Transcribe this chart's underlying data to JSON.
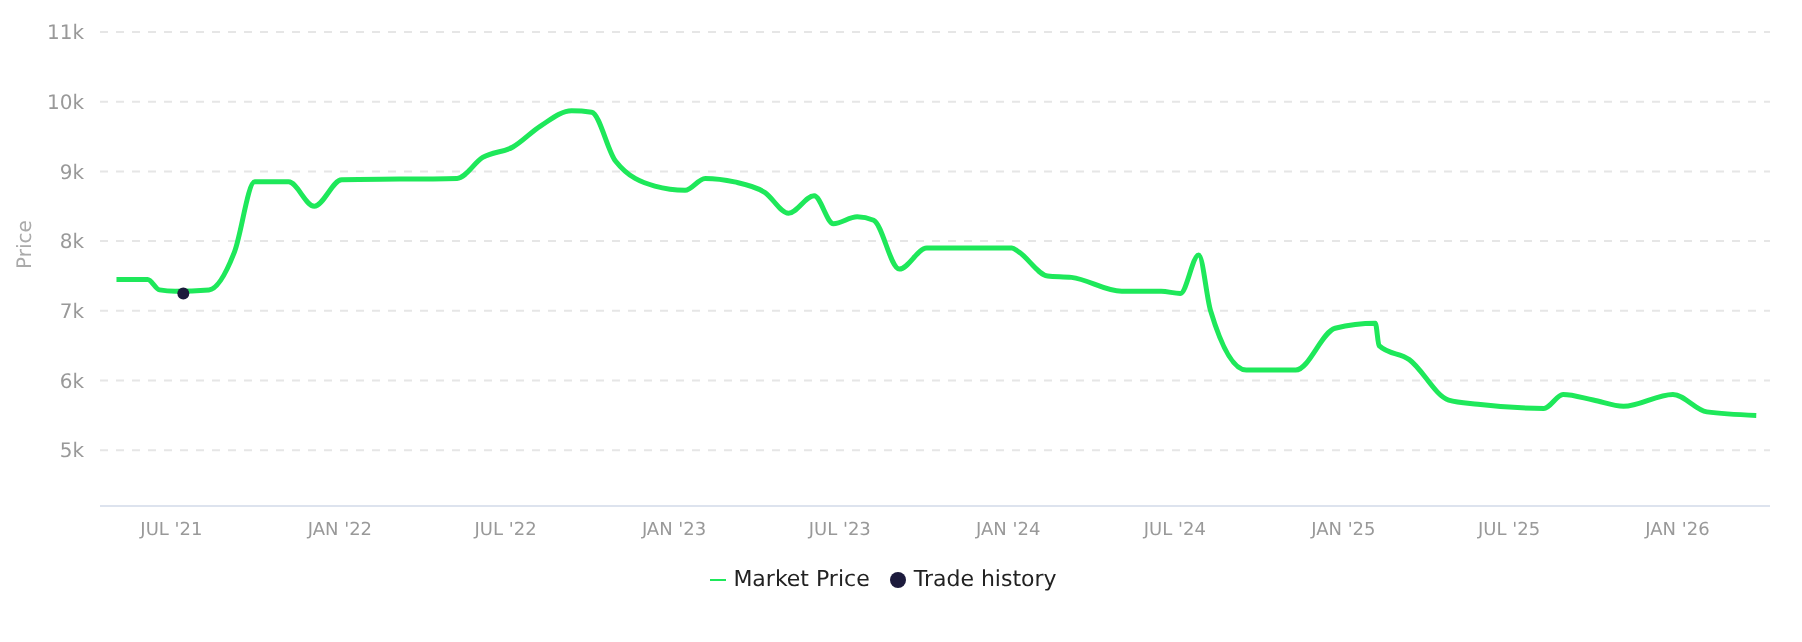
{
  "chart_data": {
    "type": "line",
    "ylabel": "Price",
    "grid": "y",
    "legend": "bottom",
    "line_style": "solid",
    "xlim": [
      "2021-04-14",
      "2026-04-12"
    ],
    "xticks": [
      {
        "value": "2021-07-01",
        "label": "JUL '21"
      },
      {
        "value": "2022-01-01",
        "label": "JAN '22"
      },
      {
        "value": "2022-07-01",
        "label": "JUL '22"
      },
      {
        "value": "2023-01-01",
        "label": "JAN '23"
      },
      {
        "value": "2023-07-01",
        "label": "JUL '23"
      },
      {
        "value": "2024-01-01",
        "label": "JAN '24"
      },
      {
        "value": "2024-07-01",
        "label": "JUL '24"
      },
      {
        "value": "2025-01-01",
        "label": "JAN '25"
      },
      {
        "value": "2025-07-01",
        "label": "JUL '25"
      },
      {
        "value": "2026-01-01",
        "label": "JAN '26"
      }
    ],
    "ylim": [
      4200,
      11000
    ],
    "yticks": [
      {
        "value": 5000,
        "label": "5k"
      },
      {
        "value": 6000,
        "label": "6k"
      },
      {
        "value": 7000,
        "label": "7k"
      },
      {
        "value": 8000,
        "label": "8k"
      },
      {
        "value": 9000,
        "label": "9k"
      },
      {
        "value": 10000,
        "label": "10k"
      },
      {
        "value": 11000,
        "label": "11k"
      }
    ],
    "series": [
      {
        "name": "Market Price",
        "color": "#1ee85a",
        "x": [
          "2021-05-02",
          "2021-06-05",
          "2021-06-18",
          "2021-07-05",
          "2021-08-11",
          "2021-09-08",
          "2021-09-30",
          "2021-11-06",
          "2021-12-04",
          "2022-01-03",
          "2022-05-09",
          "2022-06-06",
          "2022-07-09",
          "2022-08-08",
          "2022-09-11",
          "2022-10-03",
          "2022-10-29",
          "2022-12-11",
          "2023-01-13",
          "2023-02-04",
          "2023-03-08",
          "2023-04-10",
          "2023-05-06",
          "2023-06-03",
          "2023-06-24",
          "2023-07-20",
          "2023-08-07",
          "2023-09-04",
          "2023-10-04",
          "2024-01-05",
          "2024-01-12",
          "2024-02-13",
          "2024-03-10",
          "2024-05-04",
          "2024-06-16",
          "2024-07-07",
          "2024-07-27",
          "2024-08-09",
          "2024-09-17",
          "2024-11-10",
          "2024-12-23",
          "2025-02-05",
          "2025-02-09",
          "2025-03-14",
          "2025-04-26",
          "2025-05-28",
          "2025-08-08",
          "2025-08-29",
          "2025-10-01",
          "2025-11-03",
          "2025-12-27",
          "2026-02-02",
          "2026-03-28"
        ],
        "values": [
          7450,
          7450,
          7300,
          7280,
          7300,
          7850,
          8850,
          8850,
          8500,
          8880,
          8900,
          9200,
          9350,
          9650,
          9870,
          9850,
          9150,
          8790,
          8730,
          8900,
          8850,
          8700,
          8400,
          8650,
          8250,
          8350,
          8300,
          7600,
          7900,
          7900,
          7850,
          7500,
          7480,
          7280,
          7280,
          7250,
          7800,
          7000,
          6150,
          6150,
          6750,
          6820,
          6500,
          6300,
          5720,
          5660,
          5600,
          5800,
          5720,
          5630,
          5800,
          5550,
          5500
        ]
      },
      {
        "name": "Trade history",
        "type": "scatter",
        "color": "#1c1a3c",
        "x": [
          "2021-07-14"
        ],
        "values": [
          7250
        ]
      }
    ]
  }
}
